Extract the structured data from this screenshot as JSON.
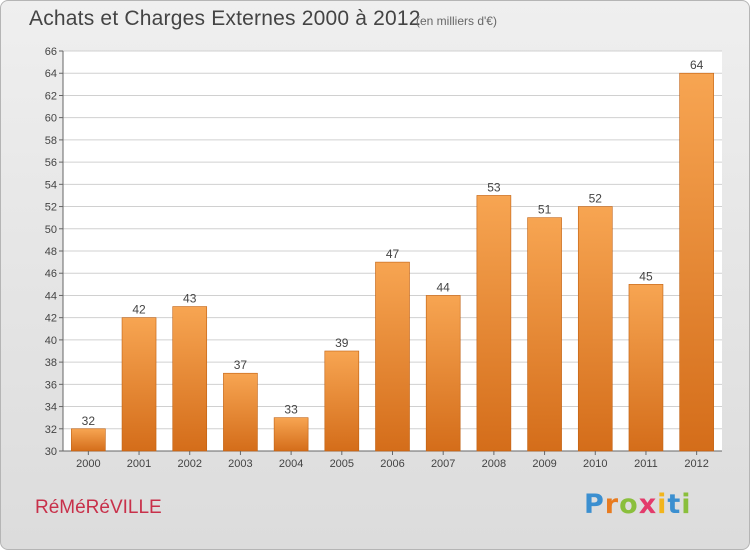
{
  "chart_data": {
    "type": "bar",
    "title": "Achats et Charges Externes 2000 à 2012",
    "subtitle": "(en milliers d'€)",
    "categories": [
      "2000",
      "2001",
      "2002",
      "2003",
      "2004",
      "2005",
      "2006",
      "2007",
      "2008",
      "2009",
      "2010",
      "2011",
      "2012"
    ],
    "values": [
      32,
      42,
      43,
      37,
      33,
      39,
      47,
      44,
      53,
      51,
      52,
      45,
      64
    ],
    "data_labels": [
      "32",
      "42",
      "43",
      "37",
      "33",
      "39",
      "47",
      "44",
      "53",
      "51",
      "52",
      "45",
      "64"
    ],
    "ylim": [
      30,
      66
    ],
    "yticks": [
      "30",
      "32",
      "34",
      "36",
      "38",
      "40",
      "42",
      "44",
      "46",
      "48",
      "50",
      "52",
      "54",
      "56",
      "58",
      "60",
      "62",
      "64",
      "66"
    ],
    "grid": true,
    "legend": "none",
    "colors": {
      "bar_light": "#f7a552",
      "bar_dark": "#d46d1a",
      "bar_edge": "#c06011",
      "axis": "#666666",
      "grid": "#d0d0d0"
    }
  },
  "commune": "RéMéRéVILLE",
  "logo": {
    "letters": [
      "P",
      "r",
      "o",
      "x",
      "i",
      "t",
      "i"
    ],
    "colors": [
      "#3b8fd0",
      "#e87b1f",
      "#8abf3c",
      "#e33b6b",
      "#f2b51c",
      "#3b8fd0",
      "#8abf3c"
    ]
  }
}
